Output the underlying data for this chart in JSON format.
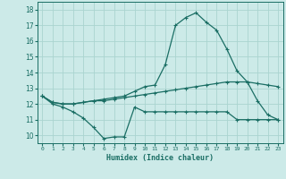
{
  "xlabel": "Humidex (Indice chaleur)",
  "bg_color": "#cceae8",
  "grid_color": "#aad4d0",
  "line_color": "#1a6e64",
  "xlim": [
    -0.5,
    23.5
  ],
  "ylim": [
    9.5,
    18.5
  ],
  "xticks": [
    0,
    1,
    2,
    3,
    4,
    5,
    6,
    7,
    8,
    9,
    10,
    11,
    12,
    13,
    14,
    15,
    16,
    17,
    18,
    19,
    20,
    21,
    22,
    23
  ],
  "yticks": [
    10,
    11,
    12,
    13,
    14,
    15,
    16,
    17,
    18
  ],
  "line1_y": [
    12.5,
    12.0,
    11.8,
    11.5,
    11.1,
    10.5,
    9.8,
    9.9,
    9.9,
    11.8,
    11.5,
    11.5,
    11.5,
    11.5,
    11.5,
    11.5,
    11.5,
    11.5,
    11.5,
    11.0,
    11.0,
    11.0,
    11.0,
    11.0
  ],
  "line2_y": [
    12.5,
    12.1,
    12.0,
    12.0,
    12.1,
    12.2,
    12.2,
    12.3,
    12.4,
    12.5,
    12.6,
    12.7,
    12.8,
    12.9,
    13.0,
    13.1,
    13.2,
    13.3,
    13.4,
    13.4,
    13.4,
    13.3,
    13.2,
    13.1
  ],
  "line3_y": [
    12.5,
    12.1,
    12.0,
    12.0,
    12.1,
    12.2,
    12.3,
    12.4,
    12.5,
    12.8,
    13.1,
    13.2,
    14.5,
    17.0,
    17.5,
    17.8,
    17.2,
    16.7,
    15.5,
    14.1,
    13.4,
    12.2,
    11.3,
    11.0
  ],
  "marker_size": 2.5,
  "linewidth": 0.9
}
